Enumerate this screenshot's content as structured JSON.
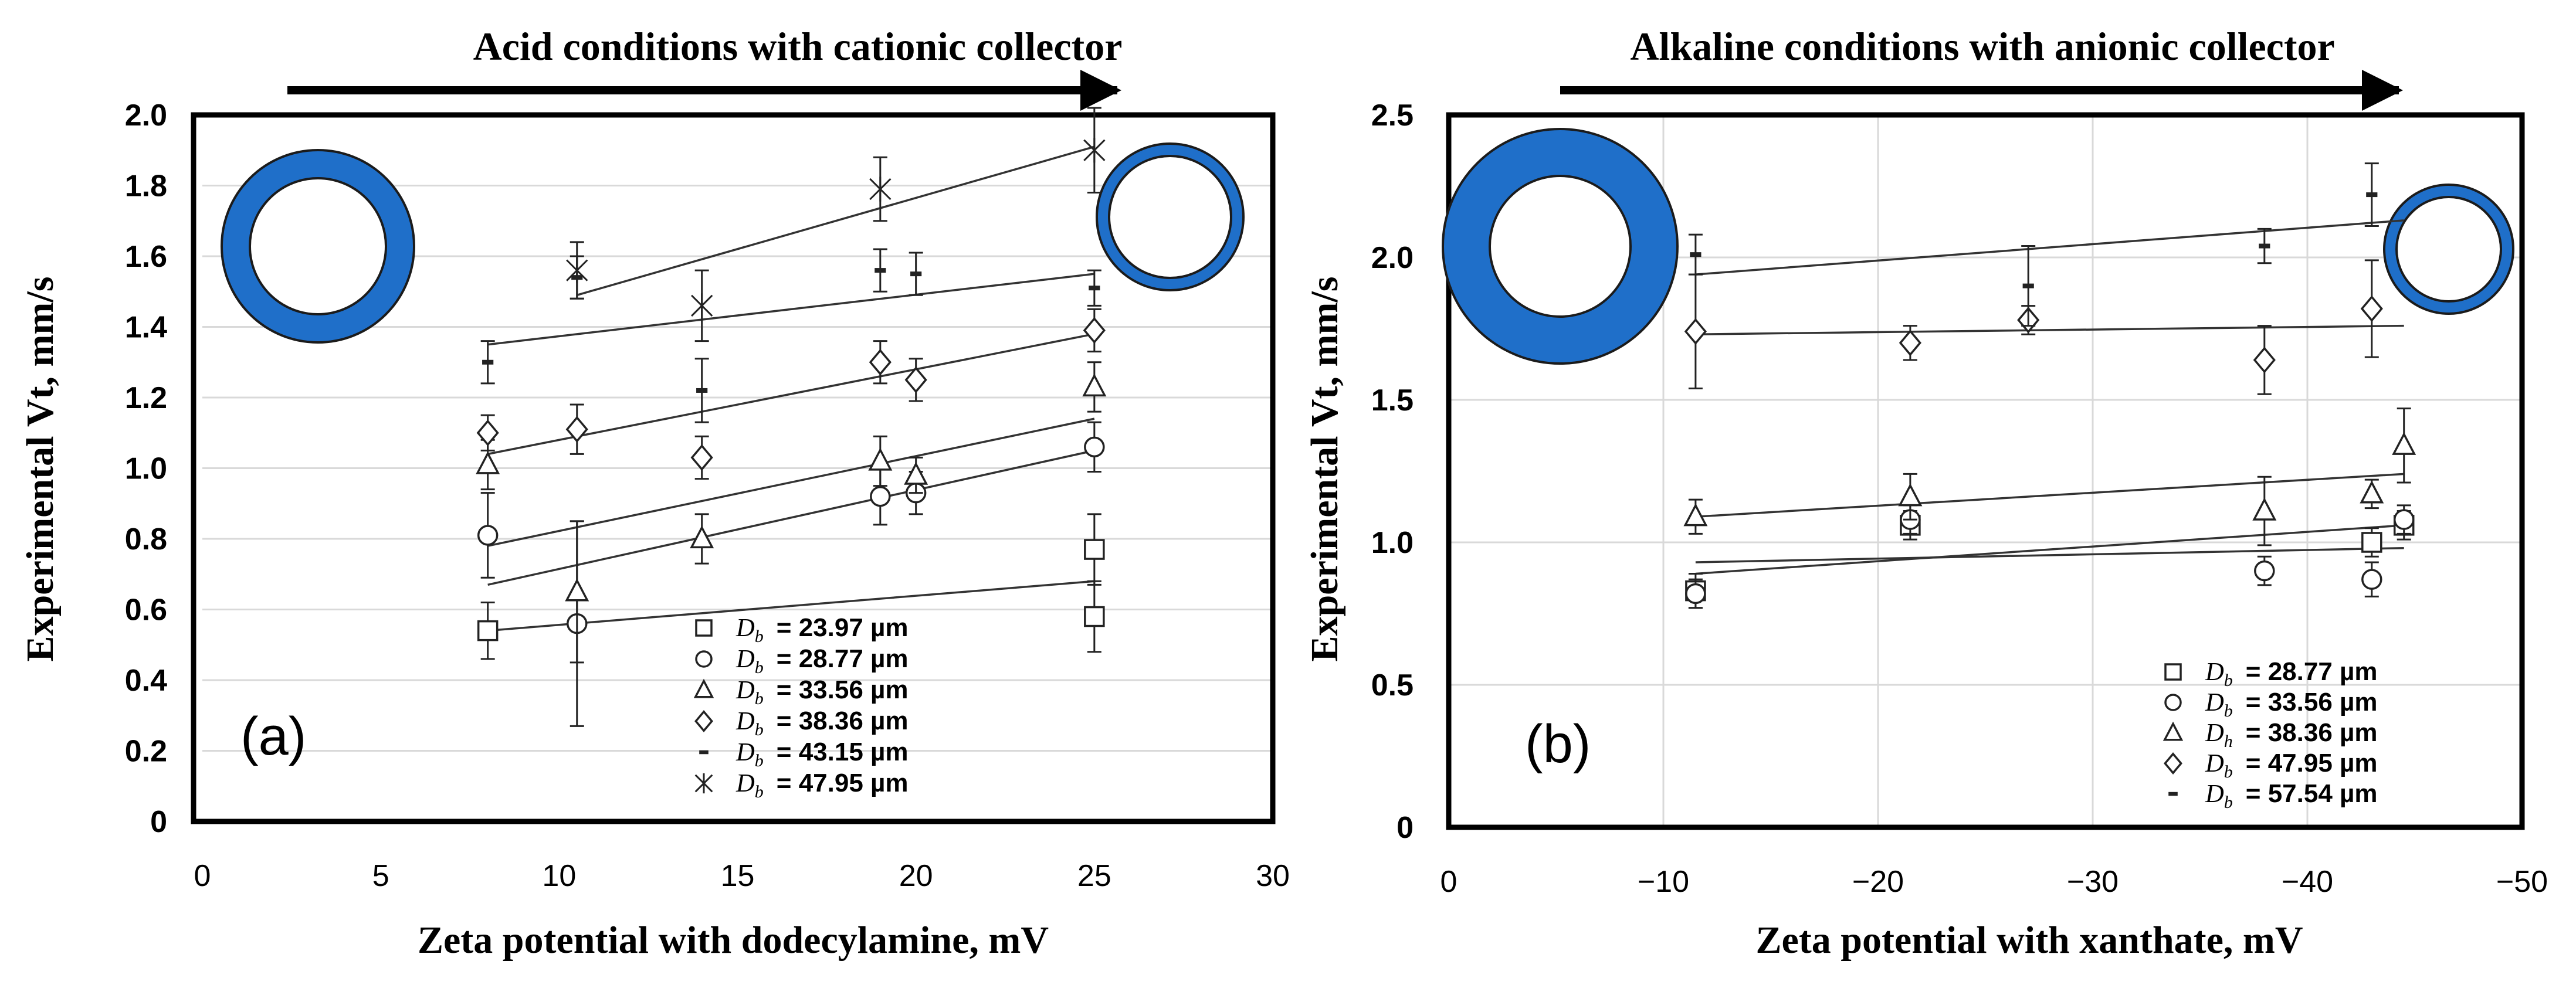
{
  "chart_data": [
    {
      "type": "scatter",
      "panel_label": "(a)",
      "title": "Acid conditions with cationic collector",
      "xlabel": "Zeta potential with dodecylamine, mV",
      "ylabel": "Experimental Vt, mm/s",
      "xlim": [
        0,
        30
      ],
      "ylim": [
        0,
        2.0
      ],
      "x_ticks": [
        "0",
        "5",
        "10",
        "15",
        "20",
        "25",
        "30"
      ],
      "y_ticks": [
        "0",
        "0.2",
        "0.4",
        "0.6",
        "0.8",
        "1.0",
        "1.2",
        "1.4",
        "1.6",
        "1.8",
        "2.0"
      ],
      "grid": "horizontal",
      "legend_position": "bottom-right",
      "legend_prefix": "D",
      "legend_sub": "b",
      "series": [
        {
          "name": "= 23.97 µm",
          "marker": "square",
          "x": [
            8,
            25,
            25
          ],
          "y": [
            0.54,
            0.77,
            0.58
          ],
          "err": [
            0.08,
            0.1,
            0.1
          ],
          "fit": [
            [
              8,
              0.54
            ],
            [
              25,
              0.68
            ]
          ]
        },
        {
          "name": "= 28.77 µm",
          "marker": "circle",
          "x": [
            8,
            10.5,
            19,
            20,
            25
          ],
          "y": [
            0.81,
            0.56,
            0.92,
            0.93,
            1.06
          ],
          "err": [
            0.12,
            0.29,
            0.08,
            0.06,
            0.07
          ],
          "fit": [
            [
              8,
              0.67
            ],
            [
              25,
              1.05
            ]
          ]
        },
        {
          "name": "= 33.56 µm",
          "marker": "triangle",
          "x": [
            8,
            10.5,
            14,
            19,
            20,
            25
          ],
          "y": [
            1.01,
            0.65,
            0.8,
            1.02,
            0.98,
            1.23
          ],
          "err": [
            0.07,
            0.2,
            0.07,
            0.07,
            0.05,
            0.07
          ],
          "fit": [
            [
              8,
              0.78
            ],
            [
              25,
              1.14
            ]
          ]
        },
        {
          "name": "= 38.36 µm",
          "marker": "diamond",
          "x": [
            8,
            10.5,
            14,
            19,
            20,
            25
          ],
          "y": [
            1.1,
            1.11,
            1.03,
            1.3,
            1.25,
            1.39
          ],
          "err": [
            0.05,
            0.07,
            0.06,
            0.06,
            0.06,
            0.06
          ],
          "fit": [
            [
              8,
              1.04
            ],
            [
              25,
              1.38
            ]
          ]
        },
        {
          "name": "= 43.15 µm",
          "marker": "dash",
          "x": [
            8,
            10.5,
            14,
            19,
            20,
            25
          ],
          "y": [
            1.3,
            1.54,
            1.22,
            1.56,
            1.55,
            1.51
          ],
          "err": [
            0.06,
            0.06,
            0.09,
            0.06,
            0.06,
            0.05
          ],
          "fit": [
            [
              8,
              1.35
            ],
            [
              25,
              1.55
            ]
          ]
        },
        {
          "name": "= 47.95 µm",
          "marker": "star",
          "x": [
            10.5,
            14,
            19,
            25
          ],
          "y": [
            1.56,
            1.46,
            1.79,
            1.9
          ],
          "err": [
            0.08,
            0.1,
            0.09,
            0.12
          ],
          "fit": [
            [
              10.5,
              1.49
            ],
            [
              25,
              1.91
            ]
          ]
        }
      ]
    },
    {
      "type": "scatter",
      "panel_label": "(b)",
      "title": "Alkaline conditions with anionic collector",
      "xlabel": "Zeta potential with xanthate, mV",
      "ylabel": "Experimental Vt, mm/s",
      "xlim": [
        0,
        -50
      ],
      "ylim": [
        0,
        2.5
      ],
      "x_ticks": [
        "0",
        "−10",
        "−20",
        "−30",
        "−40",
        "−50"
      ],
      "y_ticks": [
        "0",
        "0.5",
        "1.0",
        "1.5",
        "2.0",
        "2.5"
      ],
      "grid": "both",
      "legend_position": "bottom-right",
      "legend_prefix": "D",
      "legend_sub": [
        "b",
        "b",
        "h",
        "b",
        "b"
      ],
      "series": [
        {
          "name": "= 28.77 µm",
          "marker": "square",
          "x": [
            -11.5,
            -21.5,
            -43,
            -44.5
          ],
          "y": [
            0.83,
            1.06,
            1.0,
            1.06
          ],
          "err": [
            0.06,
            0.05,
            0.05,
            0.05
          ],
          "fit": [
            [
              -11.5,
              0.93
            ],
            [
              -44.5,
              0.98
            ]
          ]
        },
        {
          "name": "= 33.56 µm",
          "marker": "circle",
          "x": [
            -11.5,
            -21.5,
            -38,
            -43,
            -44.5
          ],
          "y": [
            0.82,
            1.08,
            0.9,
            0.87,
            1.08
          ],
          "err": [
            0.05,
            0.05,
            0.05,
            0.06,
            0.05
          ],
          "fit": [
            [
              -11.5,
              0.89
            ],
            [
              -44.5,
              1.06
            ]
          ]
        },
        {
          "name": "= 38.36 µm",
          "marker": "triangle",
          "x": [
            -11.5,
            -21.5,
            -38,
            -43,
            -44.5
          ],
          "y": [
            1.09,
            1.16,
            1.11,
            1.17,
            1.34
          ],
          "err": [
            0.06,
            0.08,
            0.12,
            0.05,
            0.13
          ],
          "fit": [
            [
              -11.5,
              1.09
            ],
            [
              -44.5,
              1.24
            ]
          ]
        },
        {
          "name": "= 47.95 µm",
          "marker": "diamond",
          "x": [
            -11.5,
            -21.5,
            -27,
            -38,
            -43
          ],
          "y": [
            1.74,
            1.7,
            1.78,
            1.64,
            1.82
          ],
          "err": [
            0.2,
            0.06,
            0.05,
            0.12,
            0.17
          ],
          "fit": [
            [
              -11.5,
              1.73
            ],
            [
              -44.5,
              1.76
            ]
          ]
        },
        {
          "name": "= 57.54 µm",
          "marker": "dash",
          "x": [
            -11.5,
            -27,
            -38,
            -43
          ],
          "y": [
            2.01,
            1.9,
            2.04,
            2.22
          ],
          "err": [
            0.07,
            0.14,
            0.06,
            0.11
          ],
          "fit": [
            [
              -11.5,
              1.94
            ],
            [
              -44.5,
              2.13
            ]
          ]
        }
      ]
    }
  ],
  "colors": {
    "bubble_fill": "#1f6fc9",
    "bubble_stroke": "#1b1b1b",
    "axis": "#000000",
    "grid": "#d9d9d9",
    "marker": "#222222",
    "fit_line": "#333333"
  },
  "icons": [
    "bubble-thick-shell-icon",
    "bubble-thin-shell-icon",
    "arrow-right-icon"
  ]
}
